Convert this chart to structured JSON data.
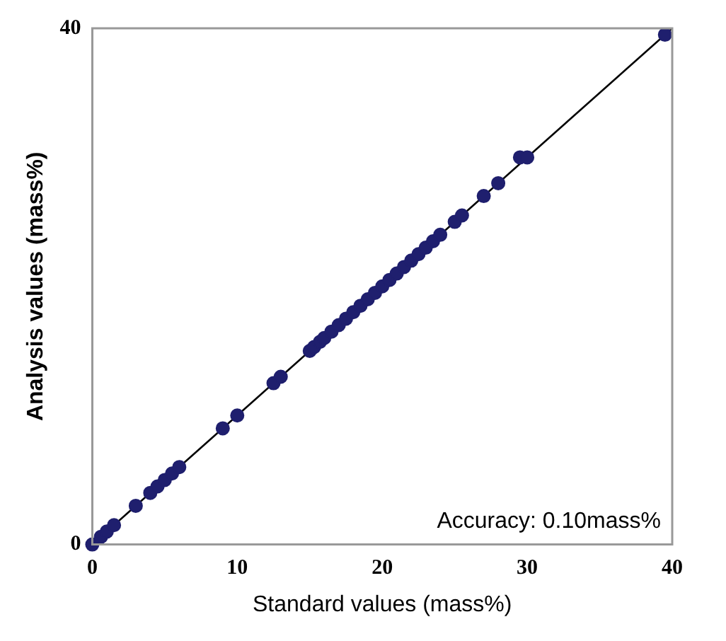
{
  "chart_data": {
    "type": "scatter",
    "xlabel": "Standard values (mass%)",
    "ylabel": "Analysis values (mass%)",
    "xlim": [
      0,
      40
    ],
    "ylim": [
      0,
      40
    ],
    "xticks": [
      0,
      10,
      20,
      30,
      40
    ],
    "yticks": [
      0,
      40
    ],
    "grid": false,
    "legend": false,
    "marker": "circle",
    "annotations": [
      "Accuracy: 0.10mass%"
    ],
    "series": [
      {
        "color": "#1f1f6e",
        "x": [
          0,
          0.6,
          1,
          1.5,
          3,
          4,
          4.5,
          5,
          5.5,
          6,
          9,
          10,
          12.5,
          13,
          15,
          15.3,
          15.7,
          16,
          16.5,
          17,
          17.5,
          18,
          18.5,
          19,
          19.5,
          20,
          20.5,
          21,
          21.5,
          22,
          22.5,
          23,
          23.5,
          24,
          25,
          25.5,
          27,
          28,
          29.5,
          30,
          39.5
        ],
        "values": [
          0,
          0.6,
          1,
          1.5,
          3,
          4,
          4.5,
          5,
          5.5,
          6,
          9,
          10,
          12.5,
          13,
          15,
          15.3,
          15.7,
          16,
          16.5,
          17,
          17.5,
          18,
          18.5,
          19,
          19.5,
          20,
          20.5,
          21,
          21.5,
          22,
          22.5,
          23,
          23.5,
          24,
          25,
          25.5,
          27,
          28,
          30,
          30,
          39.5
        ]
      },
      {
        "type": "line",
        "color": "#000000",
        "x": [
          0,
          40
        ],
        "values": [
          0,
          40
        ],
        "marker": "none"
      }
    ]
  }
}
